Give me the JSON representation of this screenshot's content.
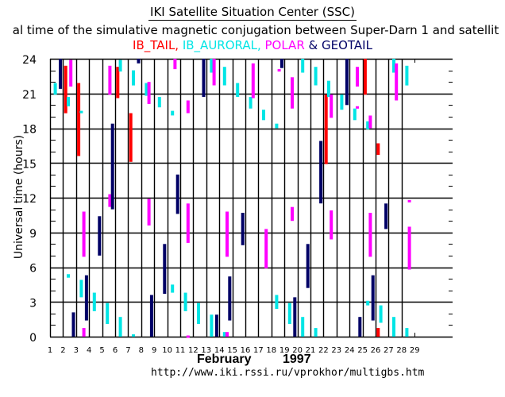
{
  "header": {
    "title": "IKI Satellite Situation Center (SSC)",
    "subtitle": "al time of the simulative magnetic conjugation between Super-Darn 1 and satellit"
  },
  "legend": {
    "items": [
      {
        "label": "IB_TAIL,",
        "color": "#ff0000"
      },
      {
        "label": " IB_AURORAL,",
        "color": "#00e5e5"
      },
      {
        "label": " POLAR",
        "color": "#ff00ff"
      },
      {
        "label": " & GEOTAIL",
        "color": "#000066"
      }
    ]
  },
  "footer": {
    "month": "February",
    "year": "1997",
    "url": "http://www.iki.rssi.ru/vprokhor/multigbs.htm"
  },
  "chart_data": {
    "type": "bar",
    "title": "IKI Satellite Situation Center (SSC)",
    "subtitle": "al time of the simulative magnetic conjugation between Super-Darn 1 and satellit",
    "xlabel": "February 1997",
    "ylabel": "Universal time (hours)",
    "x_ticks": [
      "1",
      "2",
      "3",
      "4",
      "5",
      "6",
      "7",
      "8",
      "9",
      "10",
      "11",
      "12",
      "13",
      "14",
      "15",
      "16",
      "17",
      "18",
      "19",
      "20",
      "21",
      "22",
      "23",
      "24",
      "25",
      "26",
      "27",
      "28",
      "29"
    ],
    "y_ticks": [
      "0",
      "3",
      "6",
      "9",
      "12",
      "15",
      "18",
      "21",
      "24"
    ],
    "xlim": [
      1,
      29
    ],
    "ylim": [
      0,
      24
    ],
    "grid": true,
    "legend_placement": "top-center",
    "series": [
      {
        "name": "IB_TAIL",
        "color": "#ff0000",
        "segments": [
          {
            "day": 2.2,
            "start": 19.3,
            "end": 23.4
          },
          {
            "day": 3.2,
            "start": 15.6,
            "end": 21.9
          },
          {
            "day": 6.2,
            "start": 20.6,
            "end": 23.3
          },
          {
            "day": 7.2,
            "start": 15.1,
            "end": 19.3
          },
          {
            "day": 22.2,
            "start": 14.9,
            "end": 20.9
          },
          {
            "day": 25.2,
            "start": 20.9,
            "end": 24.0
          },
          {
            "day": 26.2,
            "start": 15.7,
            "end": 16.7
          },
          {
            "day": 26.2,
            "start": 0.0,
            "end": 0.75
          }
        ]
      },
      {
        "name": "IB_AURORAL",
        "color": "#00e5e5",
        "segments": [
          {
            "day": 1.4,
            "start": 20.9,
            "end": 21.9
          },
          {
            "day": 2.4,
            "start": 19.9,
            "end": 20.7
          },
          {
            "day": 3.4,
            "start": 19.3,
            "end": 19.5
          },
          {
            "day": 6.4,
            "start": 22.9,
            "end": 23.9
          },
          {
            "day": 7.4,
            "start": 21.7,
            "end": 23.0
          },
          {
            "day": 8.4,
            "start": 20.8,
            "end": 21.9
          },
          {
            "day": 9.4,
            "start": 19.8,
            "end": 20.7
          },
          {
            "day": 10.4,
            "start": 19.1,
            "end": 19.5
          },
          {
            "day": 13.4,
            "start": 22.8,
            "end": 24.0
          },
          {
            "day": 14.4,
            "start": 21.7,
            "end": 23.3
          },
          {
            "day": 15.4,
            "start": 20.7,
            "end": 21.9
          },
          {
            "day": 16.4,
            "start": 19.7,
            "end": 20.7
          },
          {
            "day": 17.4,
            "start": 18.7,
            "end": 19.6
          },
          {
            "day": 18.4,
            "start": 18.0,
            "end": 18.4
          },
          {
            "day": 20.4,
            "start": 22.8,
            "end": 24.0
          },
          {
            "day": 21.4,
            "start": 21.7,
            "end": 23.3
          },
          {
            "day": 22.4,
            "start": 20.7,
            "end": 22.1
          },
          {
            "day": 23.4,
            "start": 19.6,
            "end": 20.9
          },
          {
            "day": 24.4,
            "start": 18.7,
            "end": 19.7
          },
          {
            "day": 25.4,
            "start": 17.9,
            "end": 18.6
          },
          {
            "day": 27.4,
            "start": 22.8,
            "end": 24.0
          },
          {
            "day": 28.4,
            "start": 21.7,
            "end": 23.4
          },
          {
            "day": 2.4,
            "start": 5.1,
            "end": 5.4
          },
          {
            "day": 3.4,
            "start": 3.4,
            "end": 4.9
          },
          {
            "day": 4.4,
            "start": 2.2,
            "end": 3.8
          },
          {
            "day": 5.4,
            "start": 1.1,
            "end": 2.9
          },
          {
            "day": 6.4,
            "start": 0.0,
            "end": 1.7
          },
          {
            "day": 7.4,
            "start": 0.0,
            "end": 0.2
          },
          {
            "day": 10.4,
            "start": 3.8,
            "end": 4.5
          },
          {
            "day": 11.4,
            "start": 2.2,
            "end": 3.8
          },
          {
            "day": 12.4,
            "start": 1.1,
            "end": 2.9
          },
          {
            "day": 13.4,
            "start": 0.0,
            "end": 1.9
          },
          {
            "day": 14.4,
            "start": 0.0,
            "end": 0.4
          },
          {
            "day": 18.4,
            "start": 2.4,
            "end": 3.6
          },
          {
            "day": 19.4,
            "start": 1.1,
            "end": 2.9
          },
          {
            "day": 20.4,
            "start": 0.0,
            "end": 1.7
          },
          {
            "day": 21.4,
            "start": 0.0,
            "end": 0.75
          },
          {
            "day": 25.4,
            "start": 2.7,
            "end": 3.1
          },
          {
            "day": 26.4,
            "start": 1.2,
            "end": 2.7
          },
          {
            "day": 27.4,
            "start": 0.0,
            "end": 1.7
          },
          {
            "day": 28.4,
            "start": 0.0,
            "end": 0.75
          }
        ]
      },
      {
        "name": "POLAR",
        "color": "#ff00ff",
        "segments": [
          {
            "day": 2.6,
            "start": 21.6,
            "end": 23.9
          },
          {
            "day": 5.6,
            "start": 20.9,
            "end": 23.4
          },
          {
            "day": 8.6,
            "start": 20.1,
            "end": 22.0
          },
          {
            "day": 10.6,
            "start": 23.1,
            "end": 24.0
          },
          {
            "day": 11.6,
            "start": 19.3,
            "end": 20.4
          },
          {
            "day": 13.6,
            "start": 21.7,
            "end": 24.0
          },
          {
            "day": 16.6,
            "start": 20.6,
            "end": 23.6
          },
          {
            "day": 18.6,
            "start": 22.9,
            "end": 23.1
          },
          {
            "day": 19.6,
            "start": 19.7,
            "end": 22.4
          },
          {
            "day": 22.6,
            "start": 18.9,
            "end": 20.9
          },
          {
            "day": 24.6,
            "start": 21.6,
            "end": 23.3
          },
          {
            "day": 24.6,
            "start": 19.7,
            "end": 19.9
          },
          {
            "day": 25.6,
            "start": 18.0,
            "end": 19.1
          },
          {
            "day": 27.6,
            "start": 20.4,
            "end": 23.6
          },
          {
            "day": 3.6,
            "start": 6.9,
            "end": 10.8
          },
          {
            "day": 5.6,
            "start": 11.2,
            "end": 12.3
          },
          {
            "day": 8.6,
            "start": 9.6,
            "end": 11.9
          },
          {
            "day": 11.6,
            "start": 8.1,
            "end": 11.5
          },
          {
            "day": 14.6,
            "start": 6.9,
            "end": 10.8
          },
          {
            "day": 17.6,
            "start": 5.9,
            "end": 9.3
          },
          {
            "day": 19.6,
            "start": 10.0,
            "end": 11.2
          },
          {
            "day": 22.6,
            "start": 8.4,
            "end": 10.9
          },
          {
            "day": 25.6,
            "start": 6.9,
            "end": 10.7
          },
          {
            "day": 28.6,
            "start": 11.6,
            "end": 11.8
          },
          {
            "day": 28.6,
            "start": 5.8,
            "end": 9.5
          },
          {
            "day": 3.6,
            "start": 0.0,
            "end": 0.75
          },
          {
            "day": 11.6,
            "start": 0.0,
            "end": 0.1
          },
          {
            "day": 14.6,
            "start": 0.0,
            "end": 0.4
          }
        ]
      },
      {
        "name": "GEOTAIL",
        "color": "#000066",
        "segments": [
          {
            "day": 1.8,
            "start": 21.4,
            "end": 24.0
          },
          {
            "day": 5.8,
            "start": 11.0,
            "end": 18.4
          },
          {
            "day": 7.8,
            "start": 23.6,
            "end": 24.0
          },
          {
            "day": 12.8,
            "start": 20.7,
            "end": 24.0
          },
          {
            "day": 18.8,
            "start": 23.2,
            "end": 24.0
          },
          {
            "day": 23.8,
            "start": 20.0,
            "end": 24.0
          },
          {
            "day": 21.8,
            "start": 11.5,
            "end": 16.9
          },
          {
            "day": 4.8,
            "start": 7.0,
            "end": 10.4
          },
          {
            "day": 9.8,
            "start": 3.7,
            "end": 8.0
          },
          {
            "day": 10.8,
            "start": 10.6,
            "end": 14.0
          },
          {
            "day": 15.8,
            "start": 7.9,
            "end": 10.7
          },
          {
            "day": 20.8,
            "start": 4.2,
            "end": 8.0
          },
          {
            "day": 26.8,
            "start": 9.3,
            "end": 11.5
          },
          {
            "day": 3.8,
            "start": 1.4,
            "end": 5.3
          },
          {
            "day": 14.8,
            "start": 1.4,
            "end": 5.2
          },
          {
            "day": 25.8,
            "start": 1.4,
            "end": 5.3
          },
          {
            "day": 2.8,
            "start": 0.0,
            "end": 2.1
          },
          {
            "day": 8.8,
            "start": 0.0,
            "end": 3.6
          },
          {
            "day": 13.8,
            "start": 0.0,
            "end": 1.9
          },
          {
            "day": 19.8,
            "start": 0.0,
            "end": 3.4
          },
          {
            "day": 24.8,
            "start": 0.0,
            "end": 1.7
          }
        ]
      }
    ]
  }
}
